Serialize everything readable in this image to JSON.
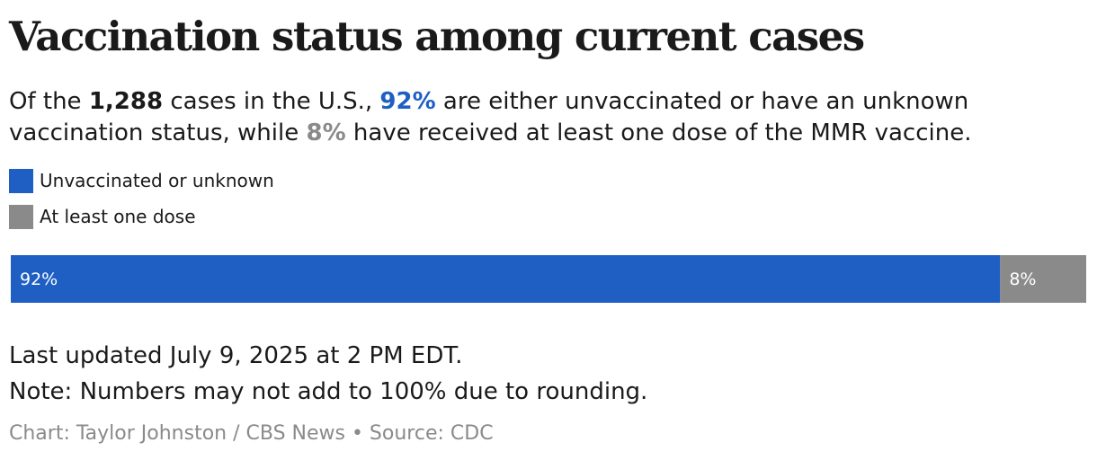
{
  "chart_data": {
    "type": "stacked-bar",
    "orientation": "horizontal",
    "title": "Vaccination status among current cases",
    "subtitle": [
      "Of the ",
      "1,288",
      " cases in the U.S., ",
      "92%",
      " are either unvaccinated or have an unknown vaccination status, while ",
      "8%",
      " have received at least one dose of the MMR vaccine."
    ],
    "xlim": [
      0,
      100
    ],
    "series": [
      {
        "name": "Unvaccinated or unknown",
        "color": "#1f5fc4",
        "values": [
          92
        ],
        "value_labels": [
          "92%"
        ]
      },
      {
        "name": "At least one dose",
        "color": "#8a8a8a",
        "values": [
          8
        ],
        "value_labels": [
          "8%"
        ]
      }
    ],
    "notes": [
      "Last updated July 9, 2025 at 2 PM EDT.",
      "Note: Numbers may not add to 100% due to rounding."
    ],
    "source": "Chart: Taylor Johnston / CBS News • Source: CDC"
  }
}
